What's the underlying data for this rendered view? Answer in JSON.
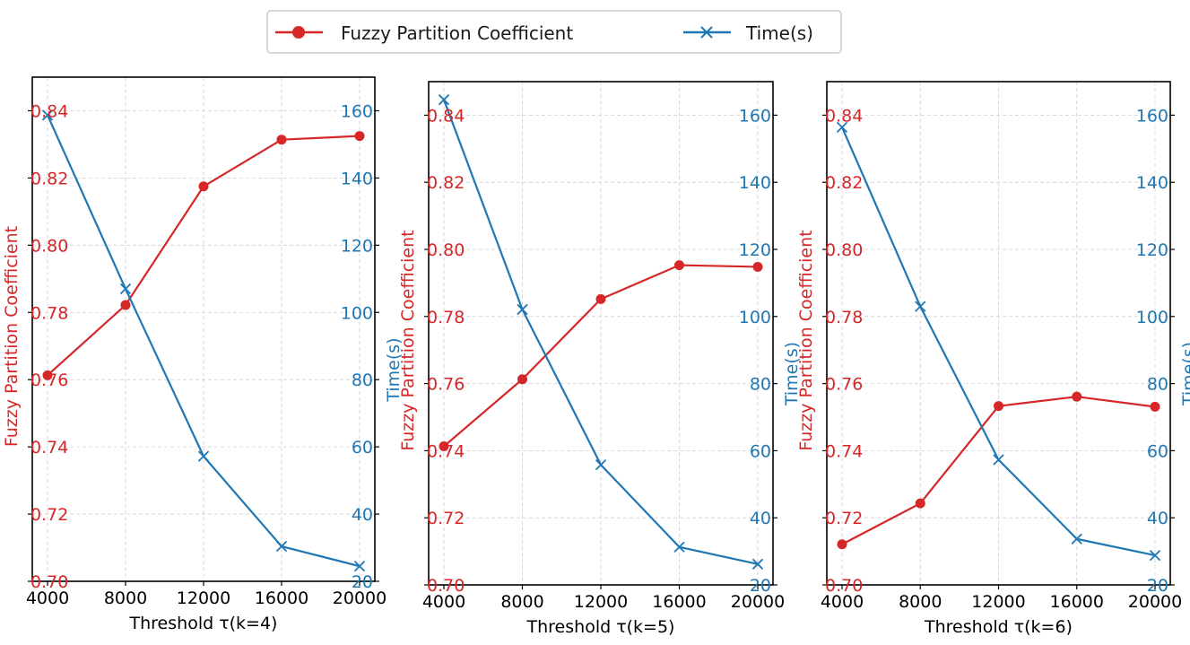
{
  "legend": {
    "entries": [
      {
        "label": "Fuzzy Partition Coefficient",
        "color": "#d62728",
        "marker": "circle"
      },
      {
        "label": "Time(s)",
        "color": "#1f77b4",
        "marker": "x"
      }
    ]
  },
  "chart_data": [
    {
      "type": "line",
      "title": "",
      "xlabel": "Threshold τ(k=4)",
      "ylabel_left": "Fuzzy Partition Coefficient",
      "ylabel_right": "Time(s)",
      "x": [
        4000,
        8000,
        12000,
        16000,
        20000
      ],
      "x_tick_labels": [
        "4000",
        "8000",
        "12000",
        "16000",
        "20000"
      ],
      "ylim_left": [
        0.7,
        0.85
      ],
      "ylim_right": [
        20,
        170
      ],
      "y_ticks_left": [
        "0.70",
        "0.72",
        "0.74",
        "0.76",
        "0.78",
        "0.80",
        "0.82",
        "0.84"
      ],
      "y_ticks_right": [
        "20",
        "40",
        "60",
        "80",
        "100",
        "120",
        "140",
        "160"
      ],
      "grid": true,
      "series": [
        {
          "name": "Fuzzy Partition Coefficient",
          "axis": "left",
          "color": "#d62728",
          "marker": "circle",
          "values": [
            0.7613,
            0.7822,
            0.8175,
            0.8314,
            0.8325
          ]
        },
        {
          "name": "Time(s)",
          "axis": "right",
          "color": "#1f77b4",
          "marker": "x",
          "values": [
            158.7,
            107.0,
            57.2,
            30.4,
            24.5
          ]
        }
      ]
    },
    {
      "type": "line",
      "title": "",
      "xlabel": "Threshold τ(k=5)",
      "ylabel_left": "Fuzzy Partition Coefficient",
      "ylabel_right": "Time(s)",
      "x": [
        4000,
        8000,
        12000,
        16000,
        20000
      ],
      "x_tick_labels": [
        "4000",
        "8000",
        "12000",
        "16000",
        "20000"
      ],
      "ylim_left": [
        0.7,
        0.85
      ],
      "ylim_right": [
        20,
        170
      ],
      "y_ticks_left": [
        "0.70",
        "0.72",
        "0.74",
        "0.76",
        "0.78",
        "0.80",
        "0.82",
        "0.84"
      ],
      "y_ticks_right": [
        "20",
        "40",
        "60",
        "80",
        "100",
        "120",
        "140",
        "160"
      ],
      "grid": true,
      "series": [
        {
          "name": "Fuzzy Partition Coefficient",
          "axis": "left",
          "color": "#d62728",
          "marker": "circle",
          "values": [
            0.7413,
            0.7613,
            0.7852,
            0.7953,
            0.7948
          ]
        },
        {
          "name": "Time(s)",
          "axis": "right",
          "color": "#1f77b4",
          "marker": "x",
          "values": [
            164.6,
            102.1,
            55.8,
            31.3,
            26.2
          ]
        }
      ]
    },
    {
      "type": "line",
      "title": "",
      "xlabel": "Threshold τ(k=6)",
      "ylabel_left": "Fuzzy Partition Coefficient",
      "ylabel_right": "Time(s)",
      "x": [
        4000,
        8000,
        12000,
        16000,
        20000
      ],
      "x_tick_labels": [
        "4000",
        "8000",
        "12000",
        "16000",
        "20000"
      ],
      "ylim_left": [
        0.7,
        0.85
      ],
      "ylim_right": [
        20,
        170
      ],
      "y_ticks_left": [
        "0.70",
        "0.72",
        "0.74",
        "0.76",
        "0.78",
        "0.80",
        "0.82",
        "0.84"
      ],
      "y_ticks_right": [
        "20",
        "40",
        "60",
        "80",
        "100",
        "120",
        "140",
        "160"
      ],
      "grid": true,
      "series": [
        {
          "name": "Fuzzy Partition Coefficient",
          "axis": "left",
          "color": "#d62728",
          "marker": "circle",
          "values": [
            0.7121,
            0.7243,
            0.7533,
            0.7561,
            0.7531
          ]
        },
        {
          "name": "Time(s)",
          "axis": "right",
          "color": "#1f77b4",
          "marker": "x",
          "values": [
            156.4,
            103.0,
            57.3,
            33.7,
            28.8
          ]
        }
      ]
    }
  ]
}
